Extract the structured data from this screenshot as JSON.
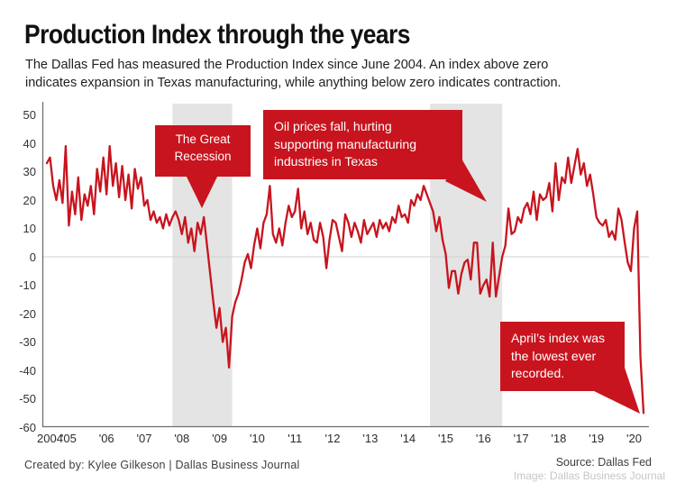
{
  "header": {
    "title": "Production Index through the years",
    "subtitle_line1": "The Dallas Fed has measured the Production Index since June 2004. An index above zero",
    "subtitle_line2": "indicates expansion in Texas manufacturing, while anything below zero indicates contraction."
  },
  "chart_data": {
    "type": "line",
    "series_name": "Dallas Fed Production Index",
    "frequency": "monthly",
    "start": "2004-06",
    "end": "2020-04",
    "values": [
      33,
      35,
      25,
      20,
      27,
      19,
      39,
      11,
      23,
      15,
      28,
      13,
      22,
      18,
      25,
      15,
      31,
      23,
      35,
      22,
      39,
      25,
      33,
      21,
      32,
      20,
      29,
      17,
      31,
      24,
      28,
      18,
      20,
      13,
      16,
      12,
      14,
      10,
      15,
      11,
      14,
      16,
      13,
      8,
      14,
      5,
      10,
      2,
      12,
      8,
      14,
      4,
      -6,
      -16,
      -25,
      -18,
      -30,
      -25,
      -39,
      -21,
      -16,
      -13,
      -8,
      -2,
      1,
      -4,
      4,
      10,
      3,
      12,
      15,
      25,
      8,
      5,
      10,
      4,
      12,
      18,
      14,
      16,
      24,
      10,
      16,
      8,
      12,
      6,
      5,
      12,
      7,
      -4,
      6,
      13,
      12,
      7,
      2,
      15,
      12,
      7,
      12,
      9,
      5,
      13,
      8,
      10,
      12,
      7,
      13,
      10,
      12,
      9,
      14,
      12,
      18,
      14,
      15,
      12,
      20,
      18,
      22,
      20,
      25,
      22,
      19,
      16,
      9,
      14,
      6,
      1,
      -11,
      -5,
      -5,
      -13,
      -6,
      -2,
      -1,
      -8,
      5,
      5,
      -13,
      -10,
      -8,
      -14,
      5,
      -14,
      -7,
      0,
      4,
      17,
      8,
      9,
      14,
      12,
      17,
      19,
      15,
      23,
      13,
      22,
      20,
      21,
      26,
      16,
      33,
      20,
      28,
      26,
      35,
      26,
      32,
      38,
      29,
      33,
      25,
      29,
      22,
      14,
      12,
      11,
      13,
      7,
      9,
      6,
      17,
      13,
      5,
      -2,
      -5,
      10,
      16,
      -35,
      -55
    ],
    "ylim": [
      -60,
      50
    ],
    "ytick_step": 10,
    "yticks": [
      50,
      40,
      30,
      20,
      10,
      0,
      -10,
      -20,
      -30,
      -40,
      -50,
      -60
    ],
    "xtick_labels": [
      "2004",
      "'05",
      "'06",
      "'07",
      "'08",
      "'09",
      "'10",
      "'11",
      "'12",
      "'13",
      "'14",
      "'15",
      "'16",
      "'17",
      "'18",
      "'19",
      "'20"
    ],
    "zero_line": true,
    "legend": "none",
    "shaded_bands": [
      {
        "label": "Great Recession period",
        "start_month_index": 40,
        "end_month_index": 59
      },
      {
        "label": "Oil price downturn period",
        "start_month_index": 122,
        "end_month_index": 145
      }
    ],
    "annotations": [
      {
        "id": "great-recession",
        "text": "The Great Recession"
      },
      {
        "id": "oil-prices",
        "text": "Oil prices fall, hurting supporting manufacturing industries in Texas"
      },
      {
        "id": "april-low",
        "text": "April’s index was the lowest ever recorded."
      }
    ]
  },
  "footer": {
    "credit": "Created by: Kylee Gilkeson | Dallas Business Journal",
    "source": "Source: Dallas Fed",
    "watermark": "Image: Dallas Business Journal"
  },
  "colors": {
    "accent_red": "#c8141e",
    "band_gray": "#e4e4e4",
    "zero_line": "#d2d2d2",
    "axis": "#6e6e6e",
    "title_text": "#111111",
    "body_text": "#1f1f1f",
    "footer_text": "#3d3d3d",
    "watermark_text": "#c6c6c6"
  }
}
